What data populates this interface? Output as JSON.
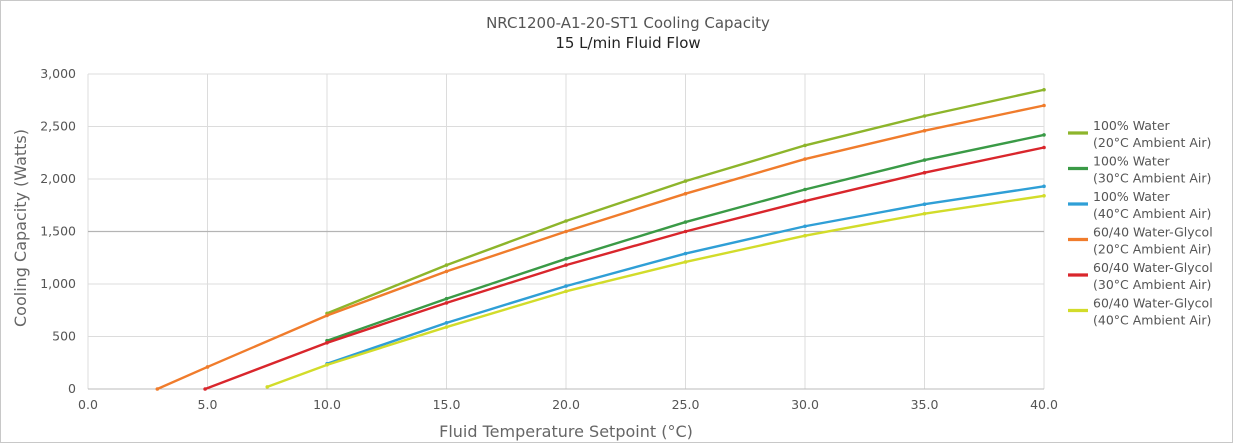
{
  "chart_data": {
    "type": "line",
    "title": "NRC1200-A1-20-ST1 Cooling Capacity",
    "subtitle": "15 L/min Fluid Flow",
    "xlabel": "Fluid Temperature Setpoint (°C)",
    "ylabel": "Cooling Capacity (Watts)",
    "xlim": [
      0,
      40
    ],
    "ylim": [
      0,
      3000
    ],
    "x_ticks": [
      0,
      5,
      10,
      15,
      20,
      25,
      30,
      35,
      40
    ],
    "x_tick_labels": [
      "0.0",
      "5.0",
      "10.0",
      "15.0",
      "20.0",
      "25.0",
      "30.0",
      "35.0",
      "40.0"
    ],
    "y_ticks": [
      0,
      500,
      1000,
      1500,
      2000,
      2500,
      3000
    ],
    "y_tick_labels": [
      "0",
      "500",
      "1,000",
      "1,500",
      "2,000",
      "2,500",
      "3,000"
    ],
    "grid": true,
    "legend_position": "right",
    "series": [
      {
        "name_line1": "100% Water",
        "name_line2": "(20°C Ambient Air)",
        "color": "#8db52b",
        "x": [
          10,
          15,
          20,
          25,
          30,
          35,
          40
        ],
        "y": [
          720,
          1180,
          1600,
          1980,
          2320,
          2600,
          2850
        ]
      },
      {
        "name_line1": "100% Water",
        "name_line2": "(30°C Ambient Air)",
        "color": "#3a9a46",
        "x": [
          10,
          15,
          20,
          25,
          30,
          35,
          40
        ],
        "y": [
          460,
          860,
          1240,
          1590,
          1900,
          2180,
          2420
        ]
      },
      {
        "name_line1": "100% Water",
        "name_line2": "(40°C Ambient Air)",
        "color": "#2f9fd6",
        "x": [
          10,
          15,
          20,
          25,
          30,
          35,
          40
        ],
        "y": [
          240,
          630,
          980,
          1290,
          1550,
          1760,
          1930
        ]
      },
      {
        "name_line1": "60/40 Water-Glycol",
        "name_line2": "(20°C Ambient Air)",
        "color": "#f07c2c",
        "x": [
          2.9,
          5,
          10,
          15,
          20,
          25,
          30,
          35,
          40
        ],
        "y": [
          0,
          210,
          700,
          1120,
          1500,
          1860,
          2190,
          2460,
          2700
        ]
      },
      {
        "name_line1": "60/40 Water-Glycol",
        "name_line2": "(30°C Ambient Air)",
        "color": "#d9262c",
        "x": [
          4.9,
          10,
          15,
          20,
          25,
          30,
          35,
          40
        ],
        "y": [
          0,
          440,
          820,
          1180,
          1500,
          1790,
          2060,
          2300
        ]
      },
      {
        "name_line1": "60/40 Water-Glycol",
        "name_line2": "(40°C Ambient Air)",
        "color": "#d2dc2a",
        "x": [
          7.5,
          10,
          15,
          20,
          25,
          30,
          35,
          40
        ],
        "y": [
          20,
          230,
          590,
          930,
          1210,
          1460,
          1670,
          1840
        ]
      }
    ]
  }
}
